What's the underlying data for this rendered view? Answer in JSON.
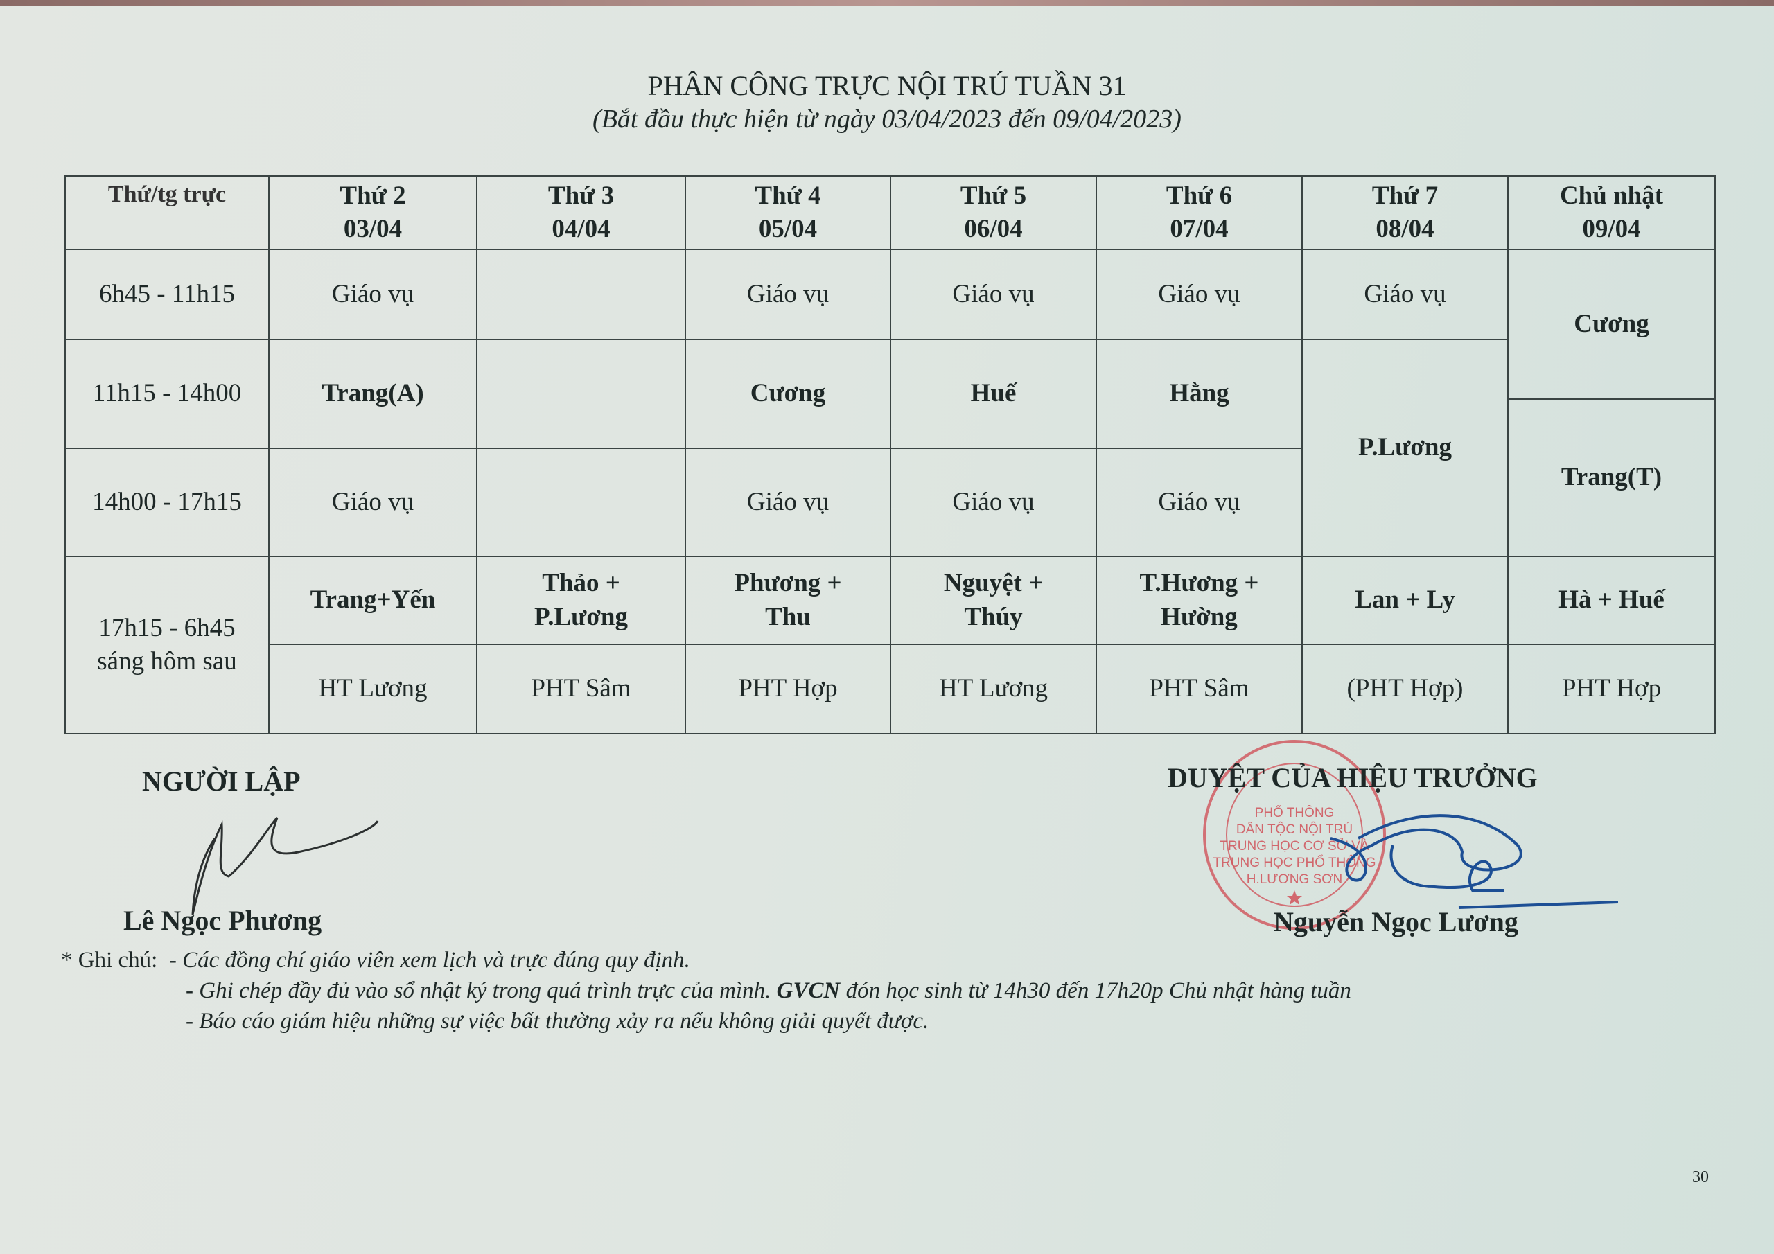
{
  "title": "PHÂN CÔNG TRỰC NỘI TRÚ TUẦN 31",
  "subtitle": "(Bắt đầu thực hiện từ ngày 03/04/2023 đến 09/04/2023)",
  "table": {
    "corner": "Thứ/tg trực",
    "days": [
      {
        "name": "Thứ 2",
        "date": "03/04"
      },
      {
        "name": "Thứ 3",
        "date": "04/04"
      },
      {
        "name": "Thứ 4",
        "date": "05/04"
      },
      {
        "name": "Thứ 5",
        "date": "06/04"
      },
      {
        "name": "Thứ 6",
        "date": "07/04"
      },
      {
        "name": "Thứ 7",
        "date": "08/04"
      },
      {
        "name": "Chủ nhật",
        "date": "09/04"
      }
    ],
    "slots": [
      "6h45 - 11h15",
      "11h15 - 14h00",
      "14h00 - 17h15",
      "17h15 - 6h45 sáng hôm sau"
    ],
    "morning": [
      "Giáo vụ",
      "",
      "Giáo vụ",
      "Giáo vụ",
      "Giáo vụ",
      "Giáo vụ"
    ],
    "noon": [
      "Trang(A)",
      "",
      "Cương",
      "Huế",
      "Hằng"
    ],
    "afternoon": [
      "Giáo vụ",
      "",
      "Giáo vụ",
      "Giáo vụ",
      "Giáo vụ"
    ],
    "sat_noon_afternoon": "P.Lương",
    "sun_day": "Cương",
    "sun_afternoon": "Trang(T)",
    "night_teachers": [
      "Trang+Yến",
      "Thảo + P.Lương",
      "Phương + Thu",
      "Nguyệt + Thúy",
      "T.Hương + Hường",
      "Lan + Ly",
      "Hà + Huế"
    ],
    "night_leaders": [
      "HT Lương",
      "PHT Sâm",
      "PHT Hợp",
      "HT Lương",
      "PHT Sâm",
      "(PHT Hợp)",
      "PHT Hợp"
    ]
  },
  "preparer": {
    "heading": "NGƯỜI LẬP",
    "name": "Lê Ngọc Phương"
  },
  "approver": {
    "heading": "DUYỆT CỦA HIỆU TRƯỞNG",
    "name": "Nguyễn Ngọc Lương"
  },
  "stamp": {
    "text": "SỞ GIÁO DỤC VÀ ĐÀO TẠO HÒA BÌNH · TRƯỜNG PHỔ THÔNG DÂN TỘC NỘI TRÚ TRUNG HỌC CƠ SỞ VÀ TRUNG HỌC PHỔ THÔNG H.LƯƠNG SƠN",
    "color": "#d0525a"
  },
  "notes": {
    "label": "* Ghi chú:",
    "items": [
      "- Các đồng chí giáo viên xem lịch và trực đúng quy định.",
      "- Ghi chép đầy đủ vào sổ nhật ký trong quá trình trực của mình.",
      "- Báo cáo giám hiệu những sự việc bất thường xảy ra nếu không giải quyết được."
    ],
    "item2_bold": "GVCN",
    "item2_rest": "đón học sinh từ 14h30 đến 17h20p Chủ nhật hàng tuần"
  },
  "page_number": "30"
}
